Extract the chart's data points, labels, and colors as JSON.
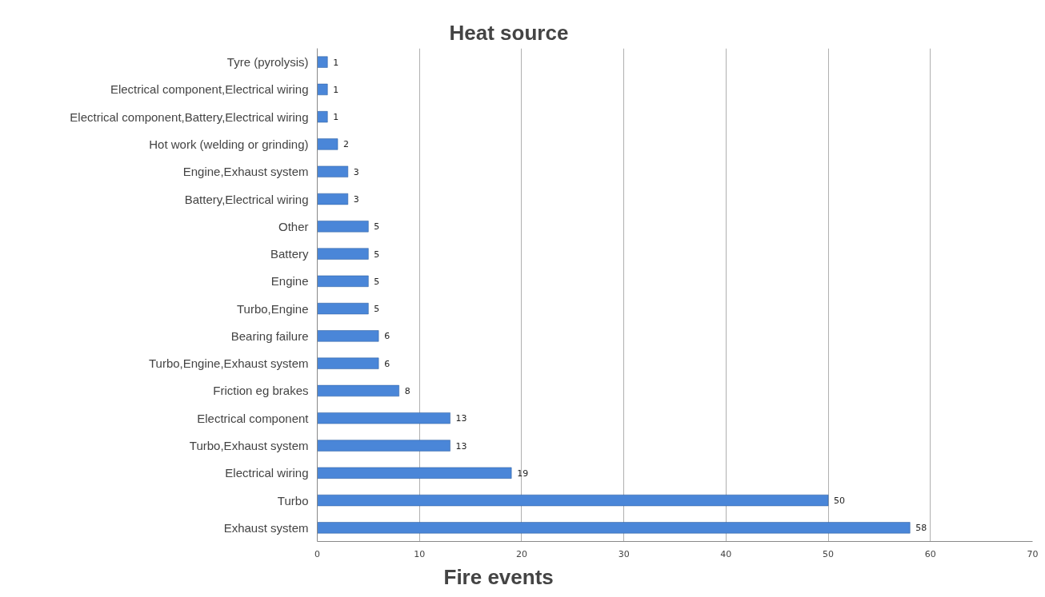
{
  "chart_data": {
    "type": "bar",
    "orientation": "horizontal",
    "title": "Heat source",
    "xlabel": "Fire events",
    "categories": [
      "Tyre (pyrolysis)",
      "Electrical component,Electrical wiring",
      "Electrical component,Battery,Electrical wiring",
      "Hot work (welding or grinding)",
      "Engine,Exhaust system",
      "Battery,Electrical wiring",
      "Other",
      "Battery",
      "Engine",
      "Turbo,Engine",
      "Bearing failure",
      "Turbo,Engine,Exhaust system",
      "Friction eg brakes",
      "Electrical component",
      "Turbo,Exhaust system",
      "Electrical wiring",
      "Turbo",
      "Exhaust system"
    ],
    "values": [
      1,
      1,
      1,
      2,
      3,
      3,
      5,
      5,
      5,
      5,
      6,
      6,
      8,
      13,
      13,
      19,
      50,
      58
    ],
    "color": "#4a86d8",
    "xlim": [
      0,
      70
    ],
    "xticks": [
      0,
      10,
      20,
      30,
      40,
      50,
      60,
      70
    ],
    "grid": "x",
    "data_labels": true
  }
}
